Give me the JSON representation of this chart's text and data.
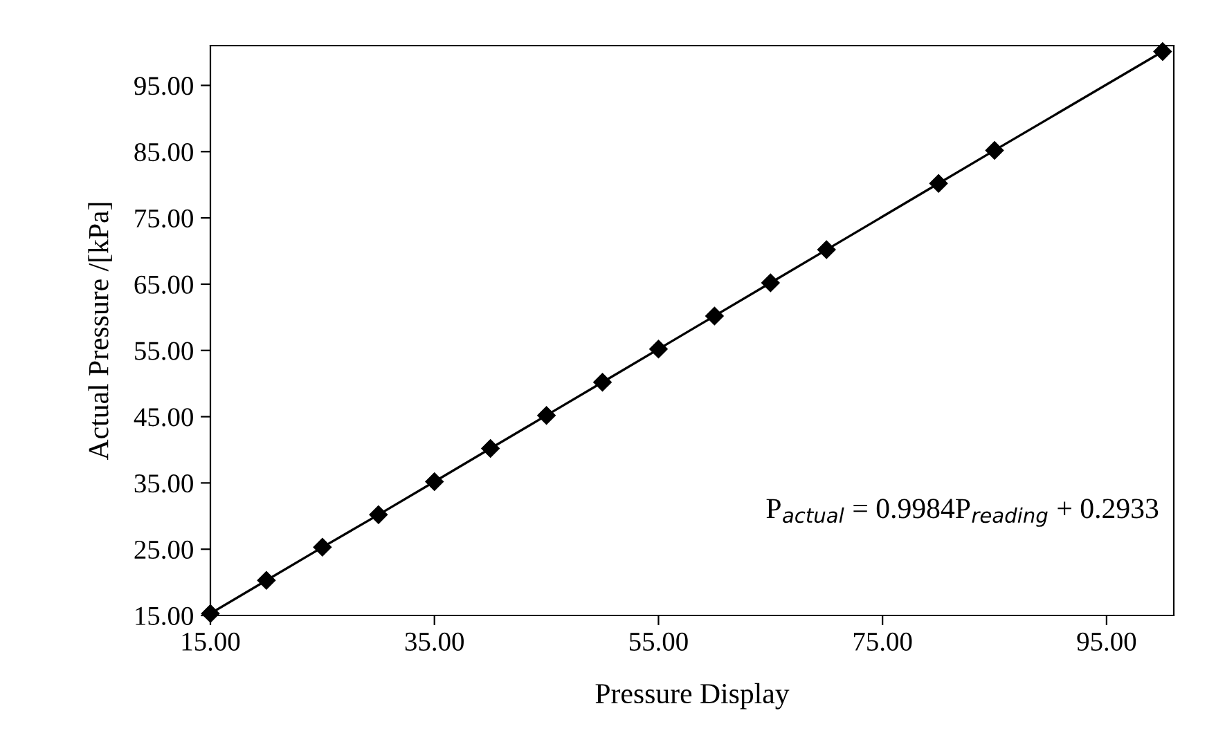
{
  "chart_data": {
    "type": "line",
    "xlabel": "Pressure Display",
    "ylabel": "Actual Pressure /[kPa]",
    "x": [
      15,
      20,
      25,
      30,
      35,
      40,
      45,
      50,
      55,
      60,
      65,
      70,
      80,
      85,
      100
    ],
    "series": [
      {
        "color": "#000000",
        "values": [
          15.3,
          20.3,
          25.3,
          30.2,
          35.2,
          40.2,
          45.2,
          50.2,
          55.2,
          60.2,
          65.2,
          70.2,
          80.2,
          85.2,
          100.1
        ]
      }
    ],
    "xlim": [
      15,
      101
    ],
    "ylim": [
      15,
      101
    ],
    "xticks": [
      {
        "value": 15,
        "label": "15.00"
      },
      {
        "value": 35,
        "label": "35.00"
      },
      {
        "value": 55,
        "label": "55.00"
      },
      {
        "value": 75,
        "label": "75.00"
      },
      {
        "value": 95,
        "label": "95.00"
      }
    ],
    "yticks": [
      {
        "value": 15,
        "label": "15.00"
      },
      {
        "value": 25,
        "label": "25.00"
      },
      {
        "value": 35,
        "label": "35.00"
      },
      {
        "value": 45,
        "label": "45.00"
      },
      {
        "value": 55,
        "label": "55.00"
      },
      {
        "value": 65,
        "label": "65.00"
      },
      {
        "value": 75,
        "label": "75.00"
      },
      {
        "value": 85,
        "label": "85.00"
      },
      {
        "value": 95,
        "label": "95.00"
      }
    ],
    "annotations": [
      "P$_{actual}$ = 0.9984P$_{reading}$ + 0.2933"
    ],
    "marker": "diamond",
    "line_style": "solid",
    "grid": false,
    "legend": false
  }
}
